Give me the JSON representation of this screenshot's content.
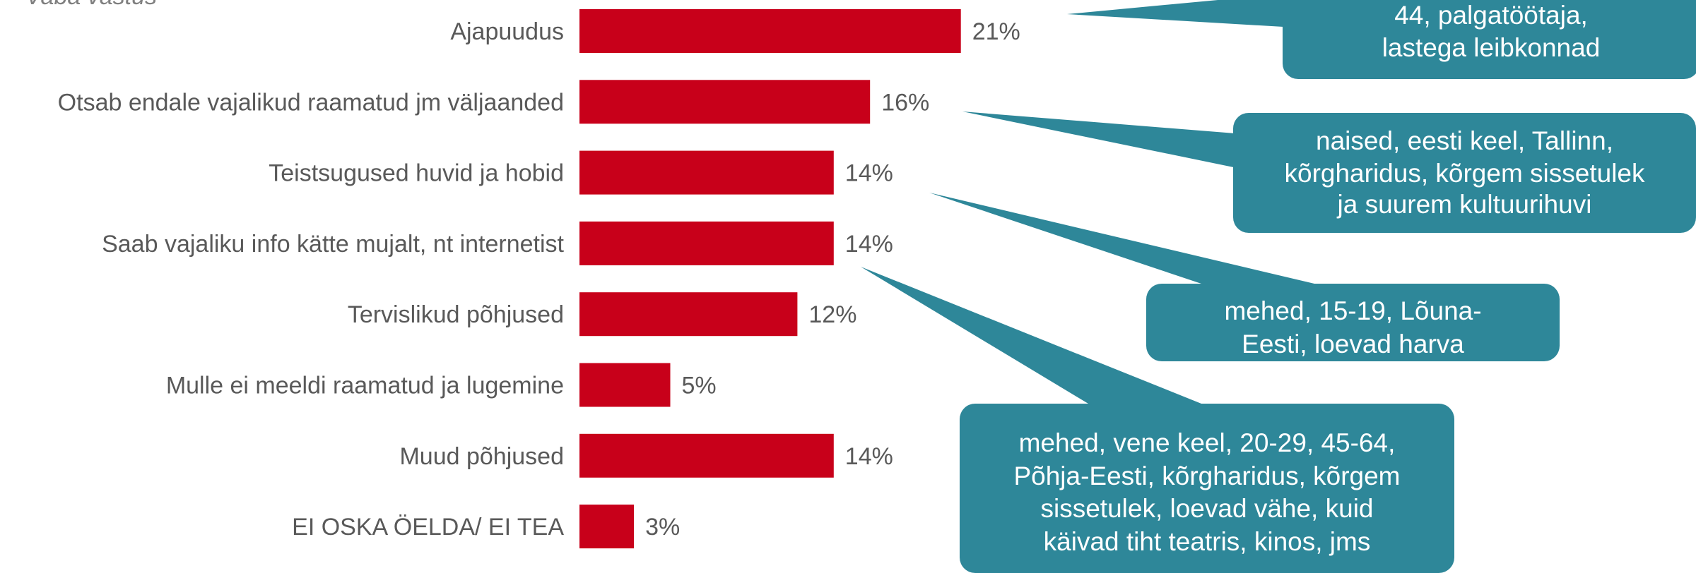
{
  "chart_data": {
    "type": "bar",
    "orientation": "horizontal",
    "note": "Vaba vastus",
    "categories": [
      "Ajapuudus",
      "Otsab endale vajalikud raamatud jm väljaanded",
      "Teistsugused huvid ja hobid",
      "Saab vajaliku info kätte mujalt, nt internetist",
      "Tervislikud põhjused",
      "Mulle ei meeldi raamatud ja lugemine",
      "Muud põhjused",
      "EI OSKA ÖELDA/ EI TEA"
    ],
    "values": [
      21,
      16,
      14,
      14,
      12,
      5,
      14,
      3
    ],
    "value_labels": [
      "21%",
      "16%",
      "14%",
      "14%",
      "12%",
      "5%",
      "14%",
      "3%"
    ],
    "unit": "%",
    "bar_color": "#c8001a",
    "callout_color": "#2e8799",
    "callouts": [
      {
        "target_category": 0,
        "lines": [
          "44, palgatöötaja,",
          "lastega leibkonnad"
        ]
      },
      {
        "target_category": 1,
        "lines": [
          "naised, eesti keel, Tallinn,",
          "kõrgharidus, kõrgem sissetulek",
          "ja suurem kultuurihuvi"
        ]
      },
      {
        "target_category": 2,
        "lines": [
          "mehed, 15-19, Lõuna-",
          "Eesti, loevad harva"
        ]
      },
      {
        "target_category": 3,
        "lines": [
          "mehed, vene keel, 20-29, 45-64,",
          "Põhja-Eesti, kõrgharidus, kõrgem",
          "sissetulek, loevad vähe, kuid",
          "käivad tiht teatris, kinos, jms"
        ]
      }
    ]
  }
}
